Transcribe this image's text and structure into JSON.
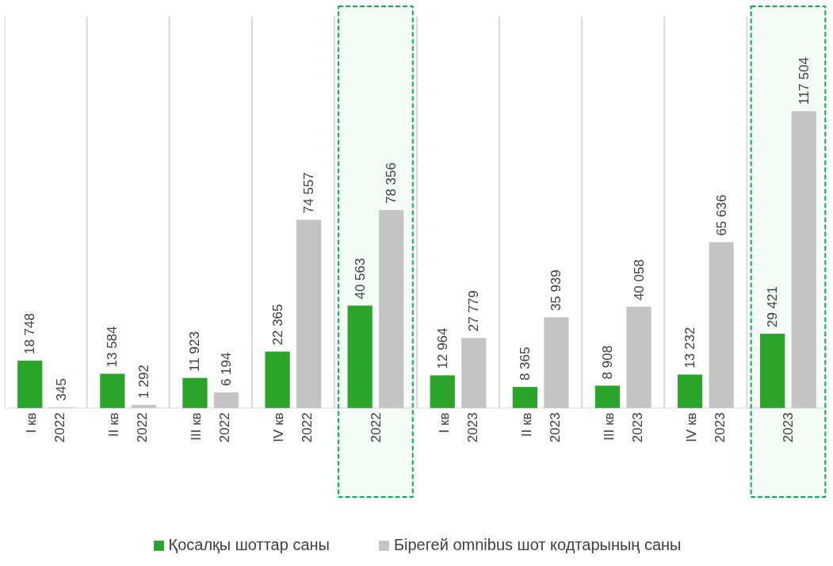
{
  "chart_data": {
    "type": "bar",
    "categories": [
      "I кв\n2022",
      "II кв\n2022",
      "III кв\n2022",
      "IV кв\n2022",
      "2022",
      "I кв\n2023",
      "II кв\n2023",
      "III кв\n2023",
      "IV кв\n2023",
      "2023"
    ],
    "series": [
      {
        "name": "Қосалқы шоттар саны",
        "color": "#2aa52a",
        "values": [
          18748,
          13584,
          11923,
          22365,
          40563,
          12964,
          8365,
          8908,
          13232,
          29421
        ],
        "value_labels": [
          "18 748",
          "13 584",
          "11 923",
          "22 365",
          "40 563",
          "12 964",
          "8 365",
          "8 908",
          "13 232",
          "29 421"
        ]
      },
      {
        "name": "Бірегей omnibus шот кодтарының саны",
        "color": "#c4c4c4",
        "values": [
          345,
          1292,
          6194,
          74557,
          78356,
          27779,
          35939,
          40058,
          65636,
          117504
        ],
        "value_labels": [
          "345",
          "1 292",
          "6 194",
          "74 557",
          "78 356",
          "27 779",
          "35 939",
          "40 058",
          "65 636",
          "117 504"
        ]
      }
    ],
    "bands": [
      {
        "axis": "x",
        "from": "2022",
        "to": "2022",
        "color": "#00b050"
      },
      {
        "axis": "x",
        "from": "2023",
        "to": "2023",
        "color": "#00b050"
      }
    ],
    "grid": "x",
    "legend": "bottom"
  }
}
